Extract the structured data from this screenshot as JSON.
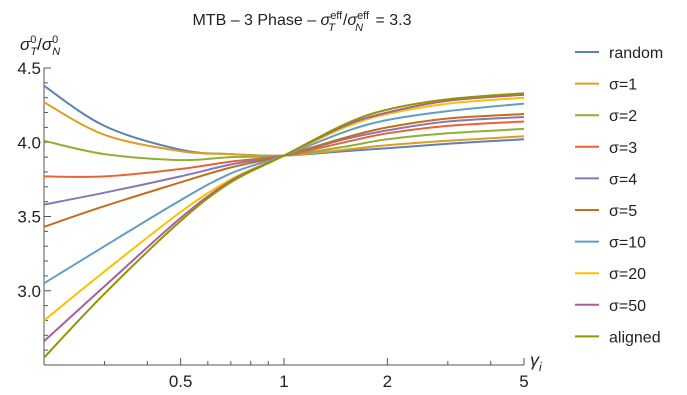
{
  "chart_data": {
    "type": "line",
    "title_prefix": "MTB – 3 Phase – ",
    "title_math": "σ_T^eff/σ_N^eff = 3.3",
    "title_value": " = 3.3",
    "ylabel": "σ_T^0/σ_N^0",
    "xlabel": "γ_i",
    "x_scale": "log",
    "xlim": [
      0.2,
      5
    ],
    "ylim": [
      2.5,
      4.5
    ],
    "x_ticks": [
      {
        "value": 0.5,
        "label": "0.5"
      },
      {
        "value": 1,
        "label": "1"
      },
      {
        "value": 2,
        "label": "2"
      },
      {
        "value": 5,
        "label": "5"
      }
    ],
    "y_ticks": [
      {
        "value": 3.0,
        "label": "3.0"
      },
      {
        "value": 3.5,
        "label": "3.5"
      },
      {
        "value": 4.0,
        "label": "4.0"
      },
      {
        "value": 4.5,
        "label": "4.5"
      }
    ],
    "x": [
      0.2,
      0.3,
      0.5,
      0.7,
      1.0,
      1.5,
      2.0,
      3.0,
      5.0
    ],
    "series": [
      {
        "name": "random",
        "color": "#5E81B5",
        "values": [
          4.38,
          4.11,
          3.95,
          3.92,
          3.91,
          3.94,
          3.96,
          3.99,
          4.02
        ]
      },
      {
        "name": "σ=1",
        "color": "#E19C24",
        "values": [
          4.27,
          4.05,
          3.94,
          3.92,
          3.91,
          3.95,
          3.98,
          4.01,
          4.04
        ]
      },
      {
        "name": "σ=2",
        "color": "#8FB032",
        "values": [
          4.01,
          3.92,
          3.88,
          3.9,
          3.91,
          3.97,
          4.02,
          4.06,
          4.09
        ]
      },
      {
        "name": "σ=3",
        "color": "#EB6235",
        "values": [
          3.77,
          3.77,
          3.82,
          3.87,
          3.91,
          4.0,
          4.06,
          4.11,
          4.14
        ]
      },
      {
        "name": "σ=4",
        "color": "#8778B3",
        "values": [
          3.58,
          3.66,
          3.77,
          3.85,
          3.91,
          4.02,
          4.08,
          4.14,
          4.17
        ]
      },
      {
        "name": "σ=5",
        "color": "#C56E1A",
        "values": [
          3.43,
          3.57,
          3.73,
          3.83,
          3.91,
          4.03,
          4.1,
          4.16,
          4.19
        ]
      },
      {
        "name": "σ=10",
        "color": "#5D9EC7",
        "values": [
          3.05,
          3.3,
          3.61,
          3.79,
          3.91,
          4.07,
          4.15,
          4.21,
          4.26
        ]
      },
      {
        "name": "σ=20",
        "color": "#FFBF00",
        "values": [
          2.8,
          3.13,
          3.53,
          3.75,
          3.91,
          4.1,
          4.19,
          4.26,
          4.3
        ]
      },
      {
        "name": "σ=50",
        "color": "#A5609D",
        "values": [
          2.66,
          3.03,
          3.49,
          3.74,
          3.91,
          4.11,
          4.2,
          4.28,
          4.32
        ]
      },
      {
        "name": "aligned",
        "color": "#929600",
        "values": [
          2.55,
          2.98,
          3.47,
          3.73,
          3.91,
          4.12,
          4.22,
          4.29,
          4.33
        ]
      }
    ]
  }
}
